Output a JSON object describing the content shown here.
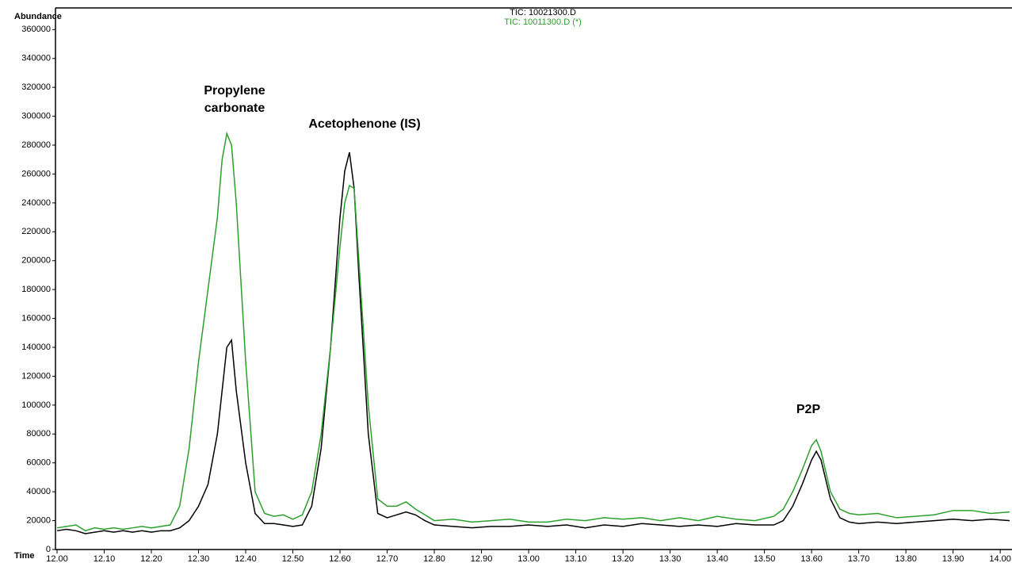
{
  "chart_data": {
    "type": "line",
    "y_label": "Abundance",
    "x_label": "Time",
    "annotations": [
      "Propylene carbonate",
      "Acetophenone (IS)",
      "P2P"
    ],
    "x": [
      12.0,
      12.02,
      12.04,
      12.06,
      12.08,
      12.1,
      12.12,
      12.14,
      12.16,
      12.18,
      12.2,
      12.22,
      12.24,
      12.26,
      12.28,
      12.3,
      12.32,
      12.34,
      12.35,
      12.36,
      12.37,
      12.38,
      12.4,
      12.42,
      12.44,
      12.46,
      12.48,
      12.5,
      12.52,
      12.54,
      12.56,
      12.58,
      12.6,
      12.61,
      12.62,
      12.63,
      12.64,
      12.66,
      12.68,
      12.7,
      12.72,
      12.74,
      12.76,
      12.78,
      12.8,
      12.84,
      12.88,
      12.92,
      12.96,
      13.0,
      13.04,
      13.08,
      13.12,
      13.16,
      13.2,
      13.24,
      13.28,
      13.32,
      13.36,
      13.4,
      13.44,
      13.48,
      13.52,
      13.54,
      13.56,
      13.58,
      13.6,
      13.61,
      13.62,
      13.64,
      13.66,
      13.68,
      13.7,
      13.74,
      13.78,
      13.82,
      13.86,
      13.9,
      13.94,
      13.98,
      14.02
    ],
    "series": [
      {
        "name": "TIC: 10021300.D",
        "color": "#000000",
        "values": [
          13000,
          14000,
          13000,
          11000,
          12000,
          13000,
          12000,
          13000,
          12000,
          13000,
          12000,
          13000,
          13000,
          15000,
          20000,
          30000,
          45000,
          80000,
          110000,
          140000,
          145000,
          110000,
          60000,
          25000,
          18000,
          18000,
          17000,
          16000,
          17000,
          30000,
          70000,
          140000,
          230000,
          262000,
          275000,
          250000,
          190000,
          80000,
          25000,
          22000,
          24000,
          26000,
          24000,
          20000,
          17000,
          16000,
          15000,
          16000,
          16000,
          17000,
          16000,
          17000,
          15000,
          17000,
          16000,
          18000,
          17000,
          16000,
          17000,
          16000,
          18000,
          17000,
          17000,
          20000,
          30000,
          45000,
          62000,
          68000,
          62000,
          35000,
          22000,
          19000,
          18000,
          19000,
          18000,
          19000,
          20000,
          21000,
          20000,
          21000,
          20000
        ]
      },
      {
        "name": "TIC: 10011300.D (*)",
        "color": "#2ca02c",
        "values": [
          15000,
          16000,
          17000,
          13000,
          15000,
          14000,
          15000,
          14000,
          15000,
          16000,
          15000,
          16000,
          17000,
          30000,
          70000,
          130000,
          180000,
          230000,
          270000,
          288000,
          280000,
          240000,
          130000,
          40000,
          25000,
          23000,
          24000,
          21000,
          24000,
          40000,
          80000,
          140000,
          210000,
          240000,
          252000,
          250000,
          200000,
          100000,
          35000,
          30000,
          30000,
          33000,
          28000,
          24000,
          20000,
          21000,
          19000,
          20000,
          21000,
          19000,
          19000,
          21000,
          20000,
          22000,
          21000,
          22000,
          20000,
          22000,
          20000,
          23000,
          21000,
          20000,
          23000,
          28000,
          40000,
          55000,
          72000,
          76000,
          68000,
          40000,
          28000,
          25000,
          24000,
          25000,
          22000,
          23000,
          24000,
          27000,
          27000,
          25000,
          26000
        ]
      }
    ],
    "xlim": [
      12.0,
      14.025
    ],
    "ylim": [
      0,
      375000
    ],
    "xticks": [
      {
        "value": 12.0,
        "label": "12.00"
      },
      {
        "value": 12.1,
        "label": "12.10"
      },
      {
        "value": 12.2,
        "label": "12.20"
      },
      {
        "value": 12.3,
        "label": "12.30"
      },
      {
        "value": 12.4,
        "label": "12.40"
      },
      {
        "value": 12.5,
        "label": "12.50"
      },
      {
        "value": 12.6,
        "label": "12.60"
      },
      {
        "value": 12.7,
        "label": "12.70"
      },
      {
        "value": 12.8,
        "label": "12.80"
      },
      {
        "value": 12.9,
        "label": "12.90"
      },
      {
        "value": 13.0,
        "label": "13.00"
      },
      {
        "value": 13.1,
        "label": "13.10"
      },
      {
        "value": 13.2,
        "label": "13.20"
      },
      {
        "value": 13.3,
        "label": "13.30"
      },
      {
        "value": 13.4,
        "label": "13.40"
      },
      {
        "value": 13.5,
        "label": "13.50"
      },
      {
        "value": 13.6,
        "label": "13.60"
      },
      {
        "value": 13.7,
        "label": "13.70"
      },
      {
        "value": 13.8,
        "label": "13.80"
      },
      {
        "value": 13.9,
        "label": "13.90"
      },
      {
        "value": 14.0,
        "label": "14.00"
      }
    ],
    "yticks": [
      0,
      20000,
      40000,
      60000,
      80000,
      100000,
      120000,
      140000,
      160000,
      180000,
      200000,
      220000,
      240000,
      260000,
      280000,
      300000,
      320000,
      340000,
      360000
    ],
    "grid": false
  }
}
